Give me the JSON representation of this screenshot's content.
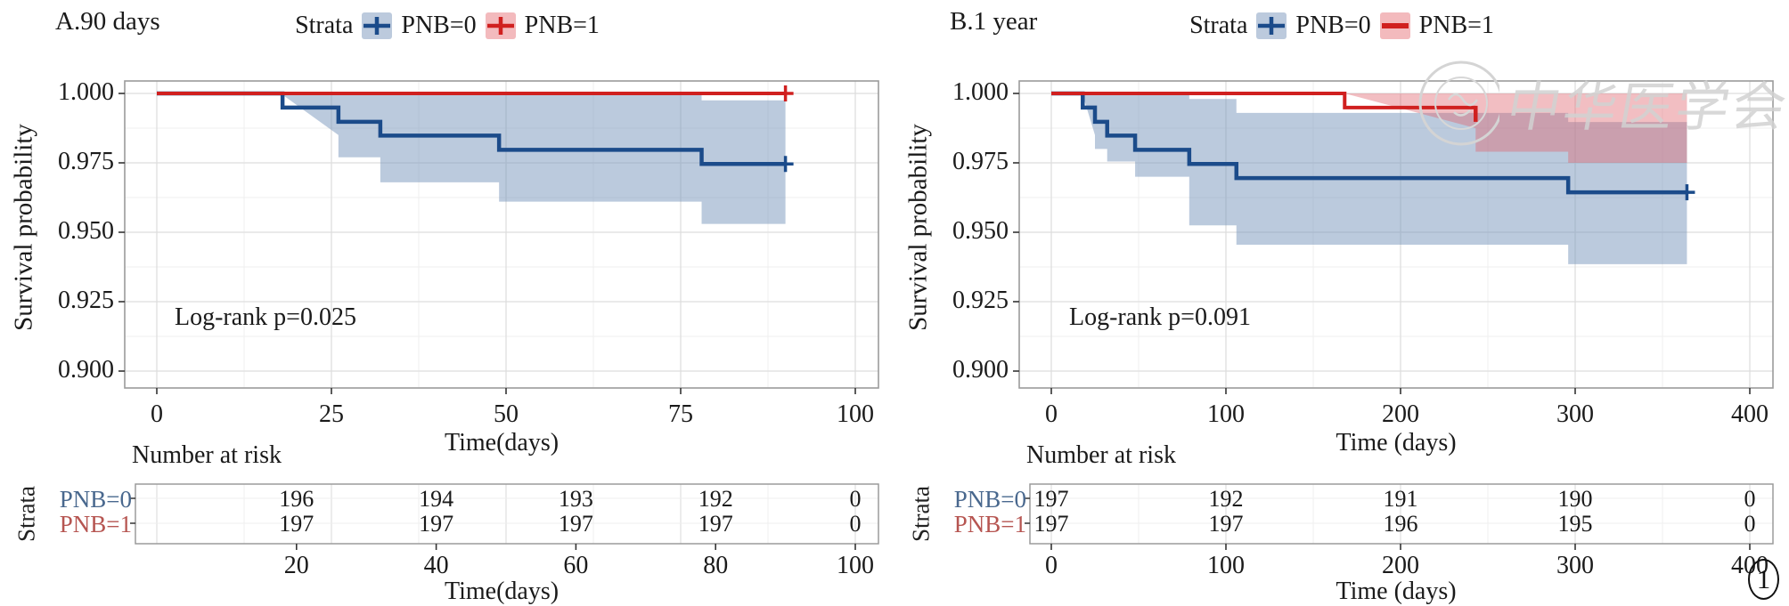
{
  "figure": {
    "corner_mark": "1"
  },
  "watermark": {
    "text": "中华医学会"
  },
  "colors": {
    "blue_line": "#1b4b8a",
    "red_line": "#d0201f",
    "blue_band": "#7d9abe",
    "pink_band": "#e0636e",
    "blue_key_fill": "#bccadd",
    "pink_key_fill": "#f3babd",
    "risk_blue_text": "#49688e",
    "risk_red_text": "#b65551",
    "grid_major": "#dedede",
    "grid_minor": "#efefef",
    "panel_border": "#9b9b9b",
    "tick": "#333333"
  },
  "panels": [
    {
      "title": "A.90 days",
      "legend": {
        "label": "Strata",
        "items": [
          {
            "label": "PNB=0",
            "glyph": "plus",
            "color": "#1b4b8a",
            "fill": "#bccadd"
          },
          {
            "label": "PNB=1",
            "glyph": "plus",
            "color": "#d0201f",
            "fill": "#f3babd"
          }
        ]
      },
      "ylabel": "Survival probability",
      "xlabel": "Time(days)",
      "yticks": [
        "1.000",
        "0.975",
        "0.950",
        "0.925",
        "0.900"
      ],
      "xticks": [
        "0",
        "25",
        "50",
        "75",
        "100"
      ],
      "annotation": "Log-rank p=0.025",
      "risk": {
        "heading": "Number at risk",
        "strata_label": "Strata",
        "xticks": [
          "20",
          "40",
          "60",
          "80",
          "100"
        ],
        "xlabel": "Time(days)",
        "rows": [
          {
            "label": "PNB=0",
            "color": "#49688e",
            "values": [
              "196",
              "194",
              "193",
              "192",
              "0"
            ]
          },
          {
            "label": "PNB=1",
            "color": "#b65551",
            "values": [
              "197",
              "197",
              "197",
              "197",
              "0"
            ]
          }
        ]
      }
    },
    {
      "title": "B.1 year",
      "legend": {
        "label": "Strata",
        "items": [
          {
            "label": "PNB=0",
            "glyph": "plus",
            "color": "#1b4b8a",
            "fill": "#bccadd"
          },
          {
            "label": "PNB=1",
            "glyph": "hline",
            "color": "#d0201f",
            "fill": "#f3babd"
          }
        ]
      },
      "ylabel": "Survival probability",
      "xlabel": "Time (days)",
      "yticks": [
        "1.000",
        "0.975",
        "0.950",
        "0.925",
        "0.900"
      ],
      "xticks": [
        "0",
        "100",
        "200",
        "300",
        "400"
      ],
      "annotation": "Log-rank p=0.091",
      "risk": {
        "heading": "Number at risk",
        "strata_label": "Strata",
        "xticks": [
          "0",
          "100",
          "200",
          "300",
          "400"
        ],
        "xlabel": "Time (days)",
        "rows": [
          {
            "label": "PNB=0",
            "color": "#49688e",
            "values": [
              "197",
              "192",
              "191",
              "190",
              "0"
            ]
          },
          {
            "label": "PNB=1",
            "color": "#b65551",
            "values": [
              "197",
              "197",
              "196",
              "195",
              "0"
            ]
          }
        ]
      }
    }
  ],
  "chart_data": [
    {
      "panel": "A",
      "type": "line",
      "subtype": "kaplan-meier-step",
      "title": "A.90 days",
      "xlabel": "Time(days)",
      "ylabel": "Survival probability",
      "xlim": [
        0,
        100
      ],
      "ylim": [
        0.9,
        1.0
      ],
      "yticks": [
        1.0,
        0.975,
        0.95,
        0.925,
        0.9
      ],
      "annotation": "Log-rank p=0.025",
      "legend_position": "top",
      "series": [
        {
          "name": "PNB=0",
          "color": "#1b4b8a",
          "step_x": [
            0,
            18,
            26,
            32,
            49,
            78,
            90
          ],
          "step_y": [
            1.0,
            0.9949,
            0.9898,
            0.9848,
            0.9797,
            0.9746,
            0.9746
          ],
          "censor_x": [
            90
          ],
          "censor_y": [
            0.9746
          ],
          "censor_style": "plus",
          "ci": {
            "x": [
              18,
              26,
              32,
              49,
              78,
              90
            ],
            "lower": [
              0.985,
              0.977,
              0.968,
              0.961,
              0.953,
              0.953
            ],
            "upper": [
              0.9995,
              0.9995,
              0.9995,
              0.9995,
              0.9975,
              0.9975
            ]
          }
        },
        {
          "name": "PNB=1",
          "color": "#d0201f",
          "step_x": [
            0,
            90
          ],
          "step_y": [
            1.0,
            1.0
          ],
          "censor_x": [
            90
          ],
          "censor_y": [
            1.0
          ],
          "censor_style": "plus",
          "ci": null
        }
      ],
      "number_at_risk": {
        "times": [
          20,
          40,
          60,
          80,
          100
        ],
        "PNB=0": [
          196,
          194,
          193,
          192,
          0
        ],
        "PNB=1": [
          197,
          197,
          197,
          197,
          0
        ]
      }
    },
    {
      "panel": "B",
      "type": "line",
      "subtype": "kaplan-meier-step",
      "title": "B.1 year",
      "xlabel": "Time (days)",
      "ylabel": "Survival probability",
      "xlim": [
        0,
        400
      ],
      "ylim": [
        0.9,
        1.0
      ],
      "yticks": [
        1.0,
        0.975,
        0.95,
        0.925,
        0.9
      ],
      "annotation": "Log-rank p=0.091",
      "legend_position": "top",
      "series": [
        {
          "name": "PNB=0",
          "color": "#1b4b8a",
          "step_x": [
            0,
            18,
            25,
            32,
            48,
            79,
            106,
            296,
            364
          ],
          "step_y": [
            1.0,
            0.9949,
            0.9898,
            0.9848,
            0.9797,
            0.9746,
            0.9695,
            0.9644,
            0.9644
          ],
          "censor_x": [
            364
          ],
          "censor_y": [
            0.9644
          ],
          "censor_style": "plus",
          "ci": {
            "x": [
              18,
              25,
              32,
              48,
              79,
              106,
              296,
              364
            ],
            "lower": [
              0.985,
              0.98,
              0.9755,
              0.97,
              0.9525,
              0.9455,
              0.9385,
              0.9385
            ],
            "upper": [
              0.9995,
              0.9995,
              0.9995,
              0.9995,
              0.998,
              0.993,
              0.9897,
              0.9897
            ]
          }
        },
        {
          "name": "PNB=1",
          "color": "#d0201f",
          "step_x": [
            0,
            168,
            243
          ],
          "step_y": [
            1.0,
            0.9949,
            0.9949
          ],
          "censor_x": [
            243
          ],
          "censor_y": [
            0.9949
          ],
          "censor_style": "tick",
          "ci": {
            "x": [
              168,
              243,
              296,
              364
            ],
            "lower": [
              0.9875,
              0.979,
              0.975,
              0.975
            ],
            "upper": [
              1.0,
              1.0,
              1.0,
              1.0
            ]
          }
        }
      ],
      "number_at_risk": {
        "times": [
          0,
          100,
          200,
          300,
          400
        ],
        "PNB=0": [
          197,
          192,
          191,
          190,
          0
        ],
        "PNB=1": [
          197,
          197,
          196,
          195,
          0
        ]
      }
    }
  ]
}
